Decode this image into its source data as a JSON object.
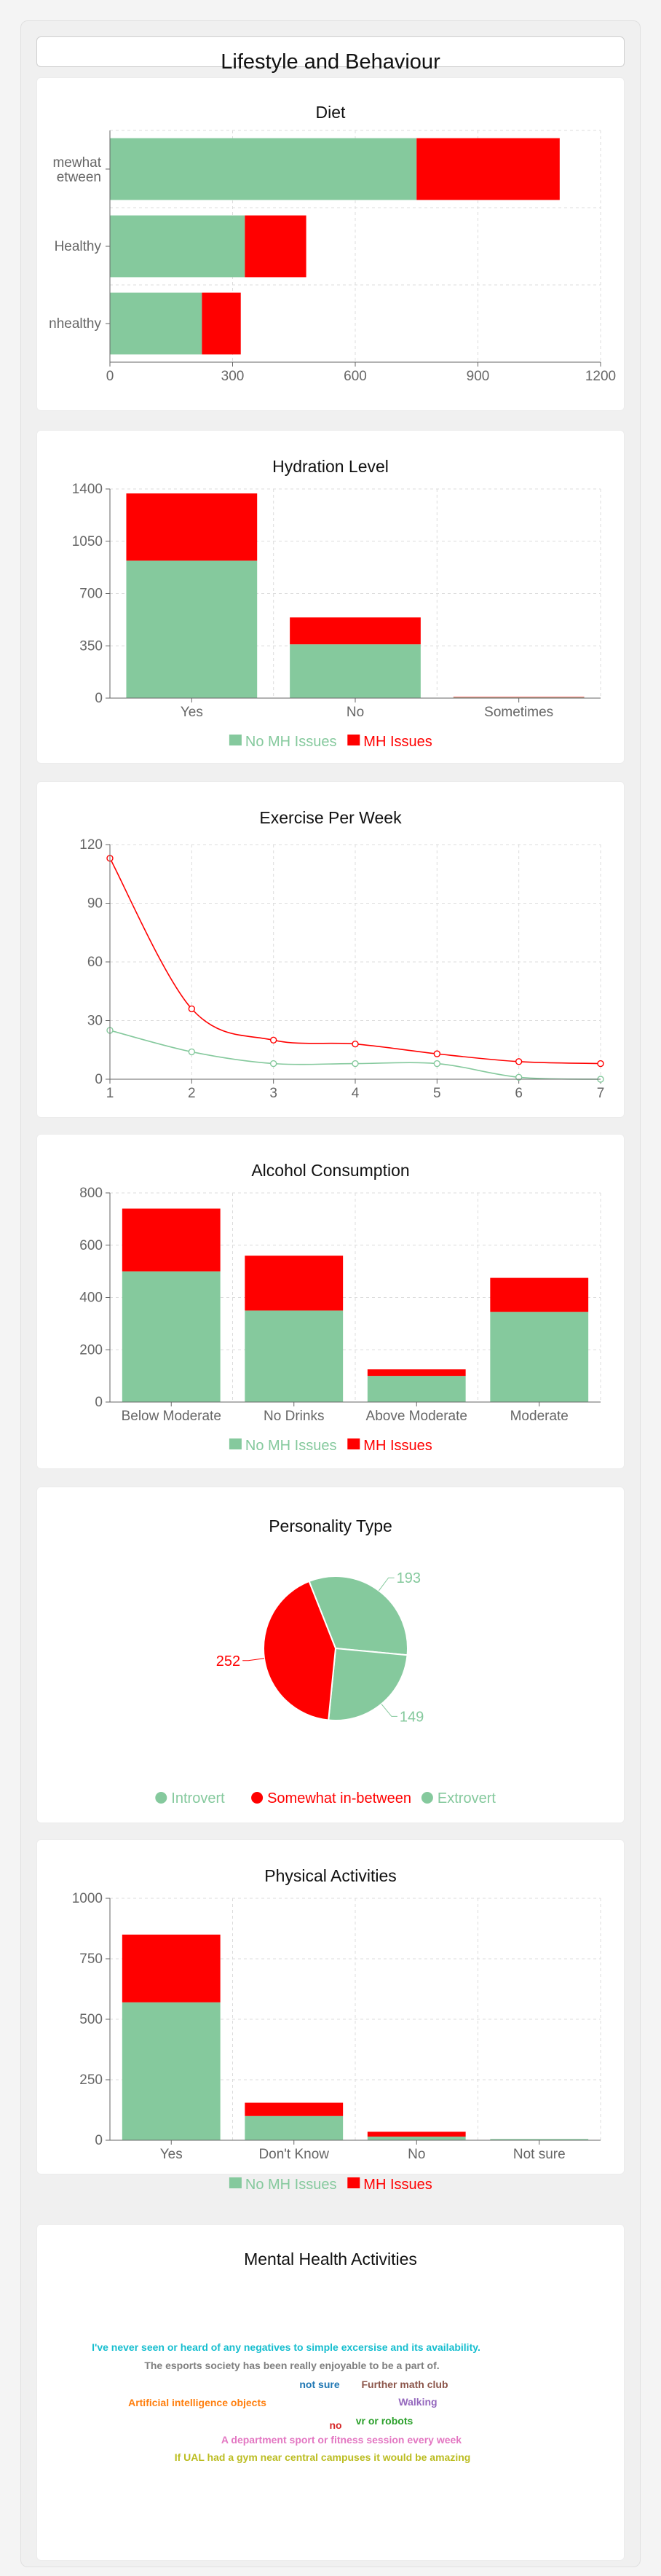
{
  "page": {
    "title": "Lifestyle and Behaviour"
  },
  "colors": {
    "no_mh": "#85c99d",
    "mh": "#ff0000"
  },
  "charts": {
    "diet": {
      "title": "Diet",
      "chart_data": {
        "type": "bar",
        "orientation": "horizontal",
        "stacked": true,
        "title": "Diet",
        "categories": [
          "Somewhat in-between",
          "Healthy",
          "Unhealthy"
        ],
        "category_tick_labels": [
          "mewhat",
          "etween",
          "Healthy",
          "nhealthy"
        ],
        "series": [
          {
            "values": [
              750,
              330,
              225
            ]
          },
          {
            "values": [
              350,
              150,
              95
            ]
          }
        ],
        "xlim": [
          0,
          1200
        ],
        "xticks": [
          0,
          300,
          600,
          900,
          1200
        ],
        "grid": true
      }
    },
    "hydration": {
      "title": "Hydration Level",
      "chart_data": {
        "type": "bar",
        "stacked": true,
        "title": "Hydration Level",
        "categories": [
          "Yes",
          "No",
          "Sometimes"
        ],
        "series": [
          {
            "name": "No MH Issues",
            "values": [
              920,
              360,
              5
            ]
          },
          {
            "name": "MH Issues",
            "values": [
              450,
              180,
              3
            ]
          }
        ],
        "ylim": [
          0,
          1400
        ],
        "yticks": [
          0,
          350,
          700,
          1050,
          1400
        ],
        "grid": true,
        "legend": "bottom"
      }
    },
    "exercise": {
      "title": "Exercise Per Week",
      "chart_data": {
        "type": "line",
        "title": "Exercise Per Week",
        "x": [
          1,
          2,
          3,
          4,
          5,
          6,
          7
        ],
        "series": [
          {
            "values": [
              25,
              14,
              8,
              8,
              8,
              1,
              0
            ]
          },
          {
            "values": [
              113,
              36,
              20,
              18,
              13,
              9,
              8
            ]
          }
        ],
        "ylim": [
          0,
          120
        ],
        "yticks": [
          0,
          30,
          60,
          90,
          120
        ],
        "grid": true
      }
    },
    "alcohol": {
      "title": "Alcohol Consumption",
      "chart_data": {
        "type": "bar",
        "stacked": true,
        "title": "Alcohol Consumption",
        "categories": [
          "Below Moderate",
          "No Drinks",
          "Above Moderate",
          "Moderate"
        ],
        "series": [
          {
            "name": "No MH Issues",
            "values": [
              500,
              350,
              100,
              345
            ]
          },
          {
            "name": "MH Issues",
            "values": [
              240,
              210,
              25,
              130
            ]
          }
        ],
        "ylim": [
          0,
          800
        ],
        "yticks": [
          0,
          200,
          400,
          600,
          800
        ],
        "grid": true,
        "legend": "bottom"
      }
    },
    "personality": {
      "title": "Personality Type",
      "chart_data": {
        "type": "pie",
        "title": "Personality Type",
        "labels": [
          "Introvert",
          "Somewhat in-between",
          "Extrovert"
        ],
        "values": [
          193,
          252,
          149
        ],
        "colors": [
          "#85c99d",
          "#ff0000",
          "#85c99d"
        ],
        "legend": "bottom"
      }
    },
    "physical": {
      "title": "Physical Activities",
      "chart_data": {
        "type": "bar",
        "stacked": true,
        "title": "Physical Activities",
        "categories": [
          "Yes",
          "Don't Know",
          "No",
          "Not sure"
        ],
        "series": [
          {
            "name": "No MH Issues",
            "values": [
              570,
              100,
              15,
              5
            ]
          },
          {
            "name": "MH Issues",
            "values": [
              280,
              55,
              20,
              0
            ]
          }
        ],
        "ylim": [
          0,
          1000
        ],
        "yticks": [
          0,
          250,
          500,
          750,
          1000
        ],
        "grid": true,
        "legend": "bottom"
      }
    }
  },
  "mental_health": {
    "title": "Mental Health Activities",
    "words": [
      {
        "text": "I've never seen or heard of any negatives to simple excersise and its availability.",
        "color": "#17becf"
      },
      {
        "text": "The esports society has been really enjoyable to be a part of.",
        "color": "#7f7f7f"
      },
      {
        "text": "not sure",
        "color": "#1f77b4"
      },
      {
        "text": "Further math club",
        "color": "#8c564b"
      },
      {
        "text": "Artificial intelligence objects",
        "color": "#ff7f0e"
      },
      {
        "text": "Walking",
        "color": "#9467bd"
      },
      {
        "text": "vr or robots",
        "color": "#2ca02c"
      },
      {
        "text": "no",
        "color": "#d62728"
      },
      {
        "text": "A department sport or fitness session every week",
        "color": "#e377c2"
      },
      {
        "text": "If UAL had a gym near central campuses it would be amazing",
        "color": "#bcbd22"
      }
    ]
  }
}
